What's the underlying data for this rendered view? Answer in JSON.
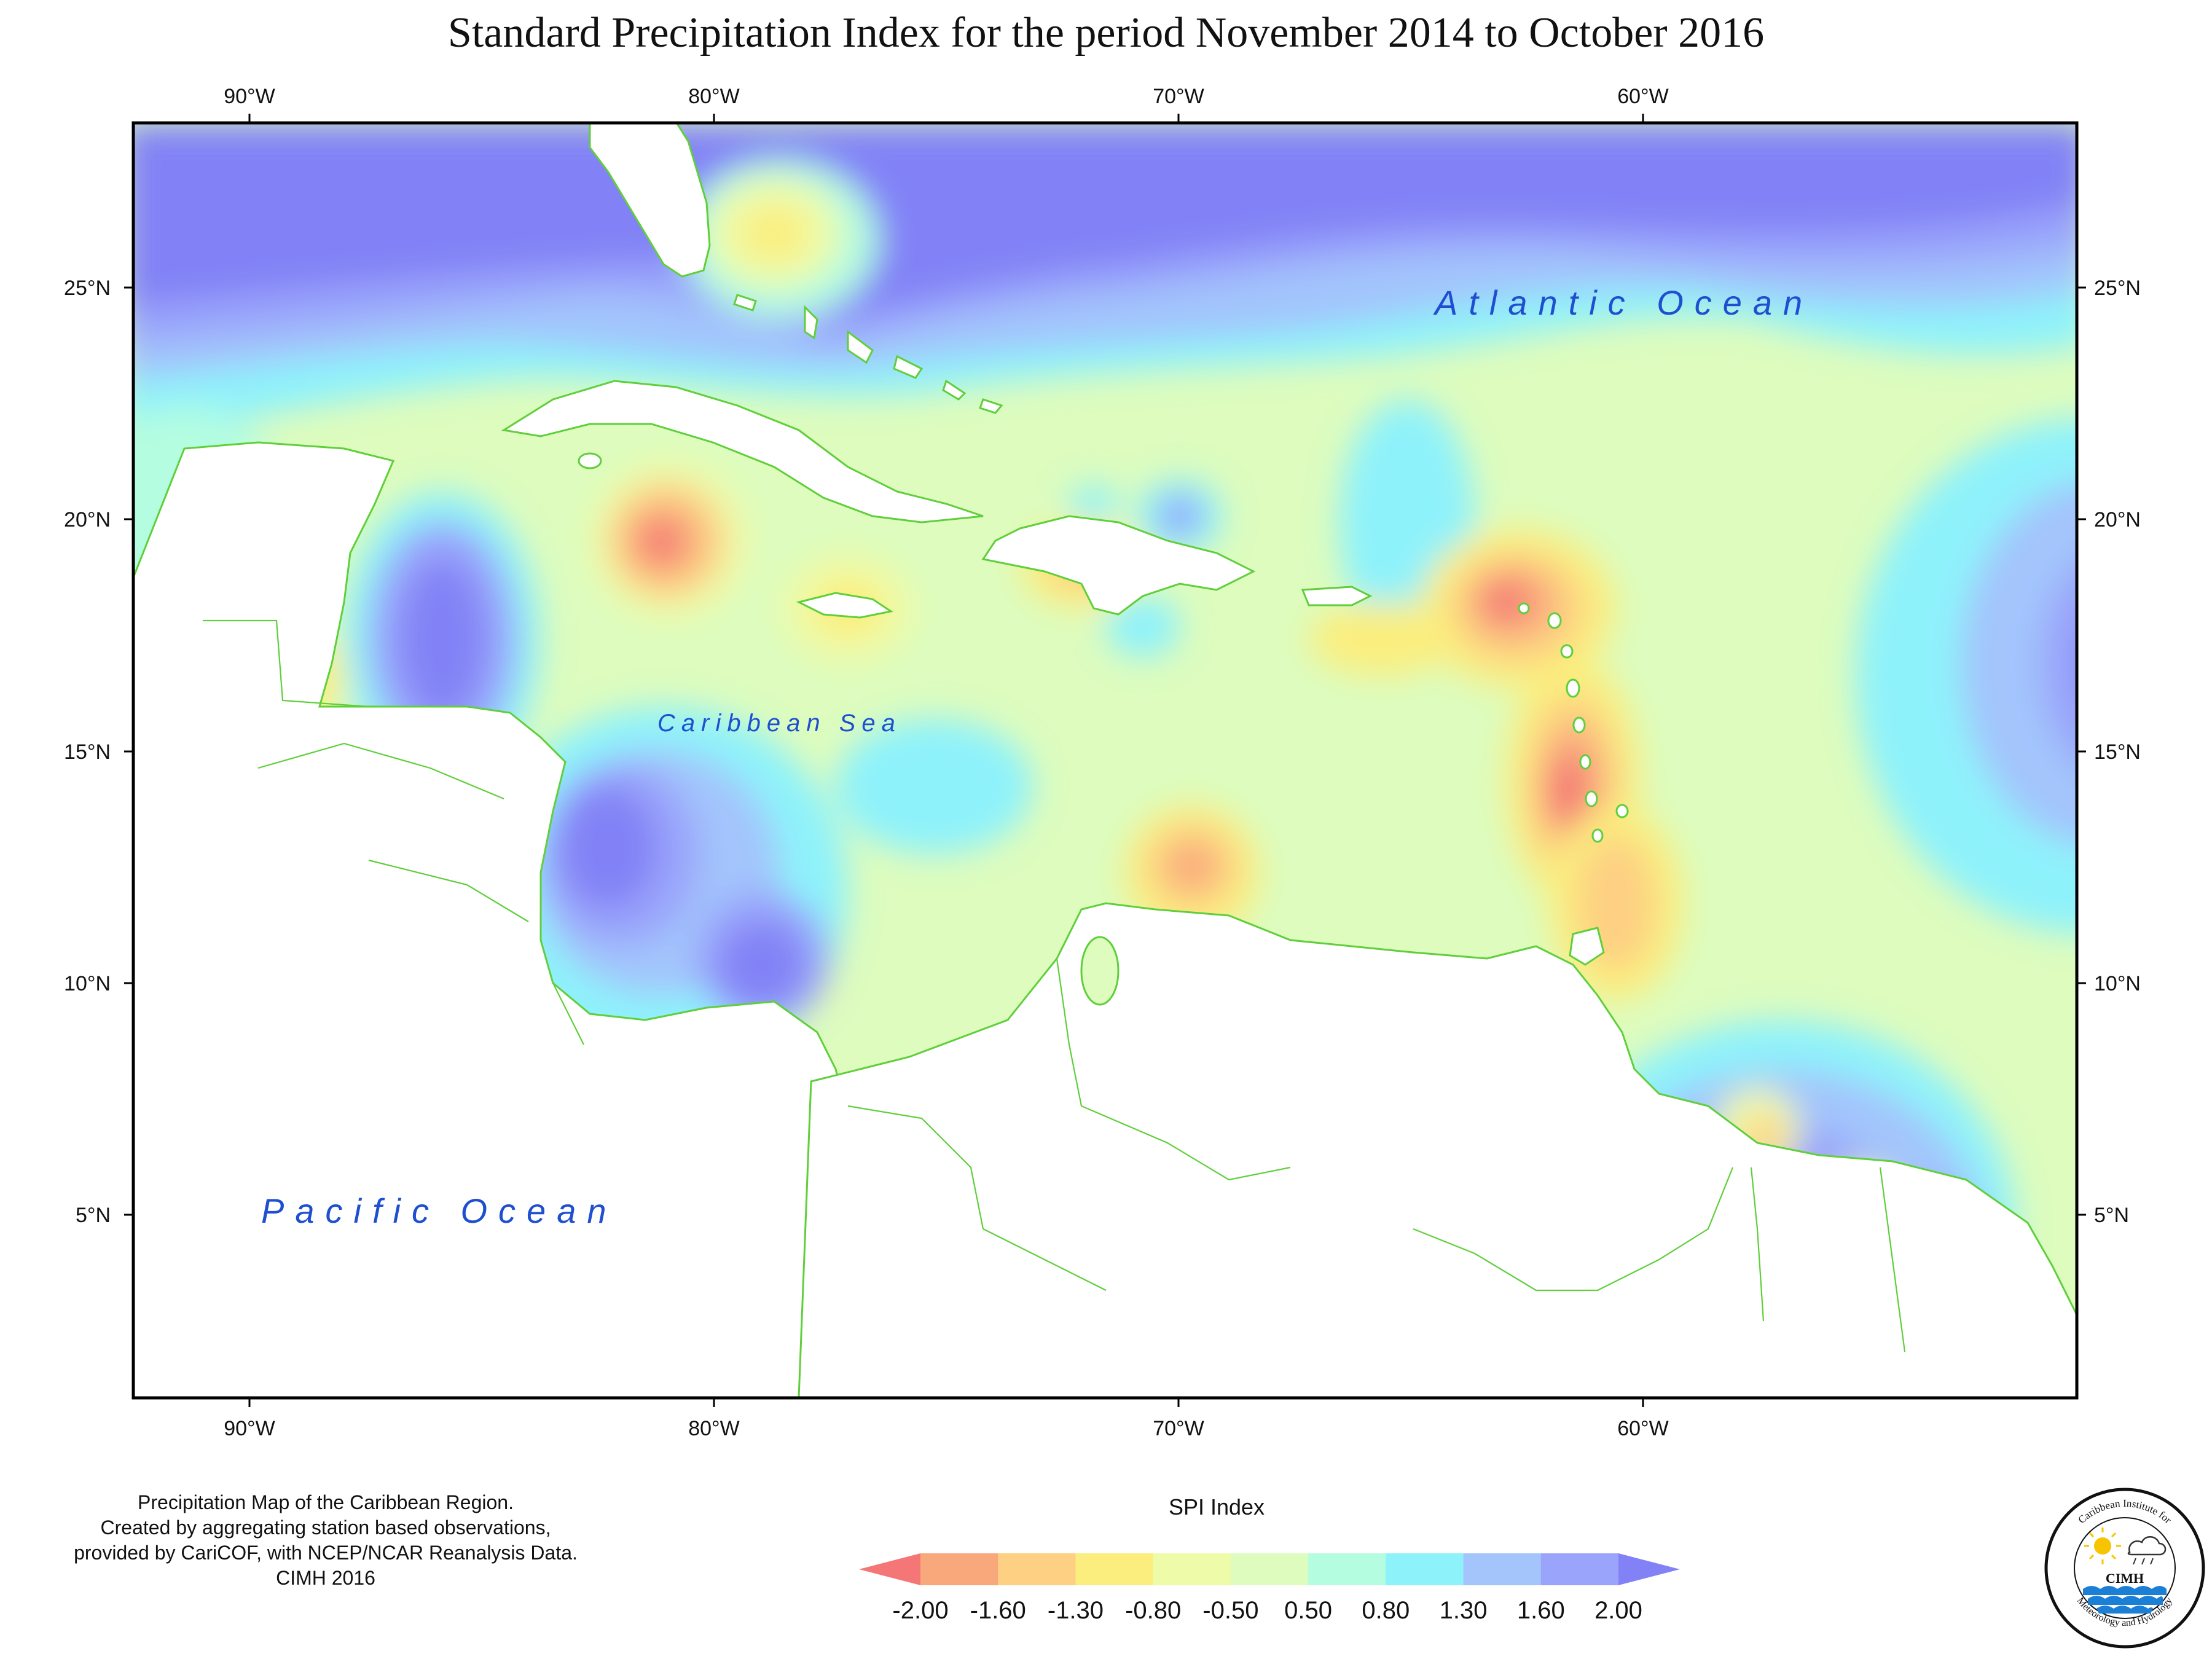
{
  "title": "Standard Precipitation Index for the period November 2014 to October 2016",
  "axes": {
    "top_lon_labels": [
      "90°W",
      "80°W",
      "70°W",
      "60°W"
    ],
    "bottom_lon_labels": [
      "90°W",
      "80°W",
      "70°W",
      "60°W"
    ],
    "left_lat_labels": [
      "25°N",
      "20°N",
      "15°N",
      "10°N",
      "5°N"
    ],
    "right_lat_labels": [
      "25°N",
      "20°N",
      "15°N",
      "10°N",
      "5°N"
    ]
  },
  "map_labels": {
    "atlantic": "Atlantic Ocean",
    "caribbean": "Caribbean Sea",
    "pacific": "Pacific Ocean"
  },
  "credit_lines": [
    "Precipitation Map of the Caribbean Region.",
    "Created by aggregating station based observations,",
    "provided by CariCOF, with NCEP/NCAR Reanalysis Data.",
    "CIMH 2016"
  ],
  "legend": {
    "title": "SPI Index",
    "colors": [
      "#f47676",
      "#f9a87c",
      "#fdd083",
      "#fbee7e",
      "#eefba8",
      "#ddfcbe",
      "#b4fde0",
      "#8ef2fb",
      "#a3c5fc",
      "#9aa4fb",
      "#8282f6"
    ],
    "tick_labels": [
      "-2.00",
      "-1.60",
      "-1.30",
      "-0.80",
      "-0.50",
      "0.50",
      "0.80",
      "1.30",
      "1.60",
      "2.00"
    ]
  },
  "logo": {
    "arc_text_top": "Caribbean Institute for",
    "center_text": "CIMH",
    "arc_text_bottom": "Meteorology and Hydrology",
    "icons": [
      "sun-icon",
      "cloud-rain-icon",
      "waves-icon"
    ]
  },
  "colors": {
    "coastline": "#5fcf3a",
    "ocean_label": "#1e4fd0",
    "land": "#ffffff"
  }
}
